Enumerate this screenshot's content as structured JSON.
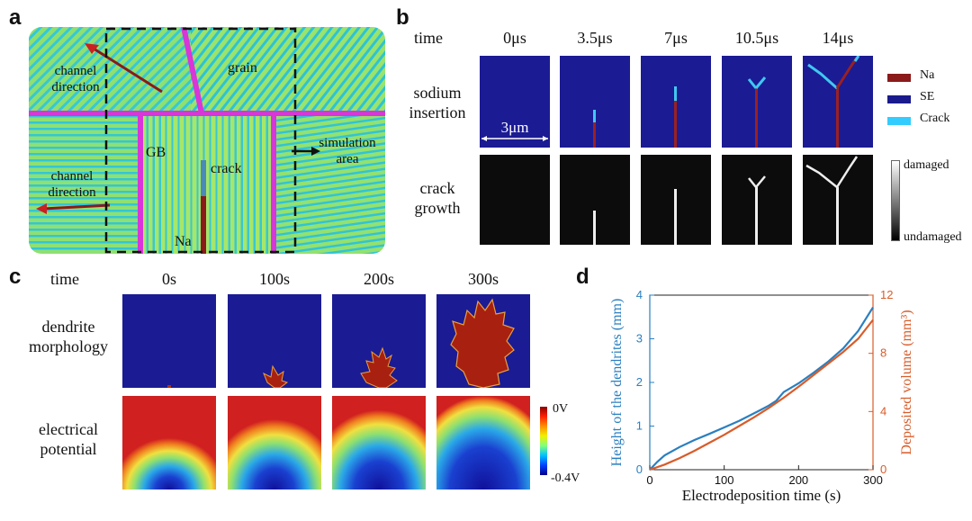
{
  "panel_labels": {
    "a": "a",
    "b": "b",
    "c": "c",
    "d": "d"
  },
  "panel_a": {
    "channel_direction_top": "channel\ndirection",
    "grain": "grain",
    "gb": "GB",
    "crack": "crack",
    "simulation_area": "simulation\narea",
    "channel_direction_bottom": "channel\ndirection",
    "na": "Na"
  },
  "panel_b": {
    "time_label": "time",
    "times": [
      "0μs",
      "3.5μs",
      "7μs",
      "10.5μs",
      "14μs"
    ],
    "row1": "sodium\ninsertion",
    "row2": "crack\ngrowth",
    "scale": "3μm",
    "legend": [
      "Na",
      "SE",
      "Crack"
    ],
    "legend_colors": [
      "#8b1a1a",
      "#1a1a8c",
      "#33ccff"
    ],
    "colorbar_top": "damaged",
    "colorbar_bottom": "undamaged"
  },
  "panel_c": {
    "time_label": "time",
    "times": [
      "0s",
      "100s",
      "200s",
      "300s"
    ],
    "row1": "dendrite\nmorphology",
    "row2": "electrical\npotential",
    "colorbar_top": "0V",
    "colorbar_bottom": "-0.4V"
  },
  "chart_data": {
    "type": "line",
    "xlabel": "Electrodeposition time (s)",
    "ylabel_left": "Height of the dendrites (mm)",
    "ylabel_right": "Deposited volume (mm³)",
    "xlim": [
      0,
      300
    ],
    "ylim_left": [
      0,
      4
    ],
    "ylim_right": [
      0,
      12
    ],
    "xticks": [
      "0",
      "100",
      "200",
      "300"
    ],
    "yticks_left": [
      "0",
      "1",
      "2",
      "3",
      "4"
    ],
    "yticks_right": [
      "0",
      "4",
      "8",
      "12"
    ],
    "series": [
      {
        "axis": "left",
        "color": "#2a7fc0",
        "x": [
          0,
          10,
          20,
          40,
          60,
          80,
          100,
          120,
          140,
          150,
          160,
          170,
          180,
          190,
          200,
          220,
          240,
          260,
          280,
          300
        ],
        "values": [
          0.0,
          0.18,
          0.33,
          0.52,
          0.68,
          0.82,
          0.97,
          1.12,
          1.29,
          1.38,
          1.47,
          1.58,
          1.78,
          1.88,
          1.98,
          2.22,
          2.48,
          2.78,
          3.18,
          3.72
        ]
      },
      {
        "axis": "right",
        "color": "#d85c2a",
        "x": [
          0,
          20,
          40,
          60,
          80,
          100,
          120,
          140,
          160,
          180,
          200,
          220,
          240,
          260,
          280,
          300
        ],
        "values": [
          0.0,
          0.35,
          0.8,
          1.3,
          1.85,
          2.4,
          3.0,
          3.6,
          4.25,
          4.95,
          5.7,
          6.5,
          7.3,
          8.1,
          9.0,
          10.3
        ]
      }
    ]
  }
}
